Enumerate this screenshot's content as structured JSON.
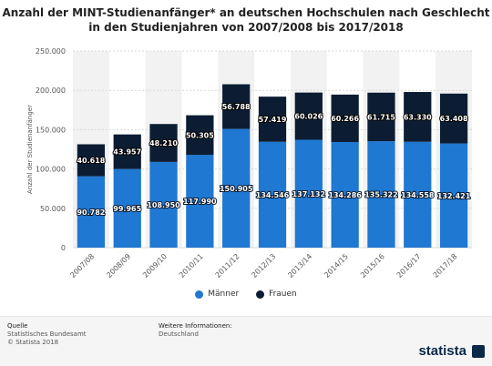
{
  "title_line1": "Anzahl der MINT-Studienanfänger* an deutschen Hochschulen nach Geschlecht",
  "title_line2": "in den Studienjahren von 2007/2008 bis 2017/2018",
  "chart_data": {
    "type": "bar",
    "stacked": true,
    "categories": [
      "2007/08",
      "2008/09",
      "2009/10",
      "2010/11",
      "2011/12",
      "2012/13",
      "2013/14",
      "2014/15",
      "2015/16",
      "2016/17",
      "2017/18"
    ],
    "series": [
      {
        "name": "Männer",
        "values": [
          90782,
          99965,
          108950,
          117990,
          150905,
          134546,
          137132,
          134286,
          135322,
          134558,
          132421
        ],
        "color": "#1f78d1"
      },
      {
        "name": "Frauen",
        "values": [
          40618,
          43957,
          48210,
          50305,
          56788,
          57419,
          60026,
          60266,
          61715,
          63330,
          63408
        ],
        "color": "#0c1d33"
      }
    ],
    "value_labels": {
      "Männer": [
        "90.782",
        "99.965",
        "108.950",
        "117.990",
        "150.905",
        "134.546",
        "137.132",
        "134.286",
        "135.322",
        "134.558",
        "132.421"
      ],
      "Frauen": [
        "40.618",
        "43.957",
        "48.210",
        "50.305",
        "56.788",
        "57.419",
        "60.026",
        "60.266",
        "61.715",
        "63.330",
        "63.408"
      ]
    },
    "ylabel": "Anzahl der Studienanfänger",
    "ylim": [
      0,
      250000
    ],
    "yticks": [
      0,
      50000,
      100000,
      150000,
      200000,
      250000
    ],
    "ytick_labels": [
      "0",
      "50.000",
      "100.000",
      "150.000",
      "200.000",
      "250.000"
    ],
    "grid": true,
    "legend_position": "bottom"
  },
  "footer": {
    "source_heading": "Quelle",
    "source_line1": "Statistisches Bundesamt",
    "source_line2": "© Statista 2018",
    "info_heading": "Weitere Informationen:",
    "info_line1": "Deutschland",
    "brand": "statista"
  }
}
